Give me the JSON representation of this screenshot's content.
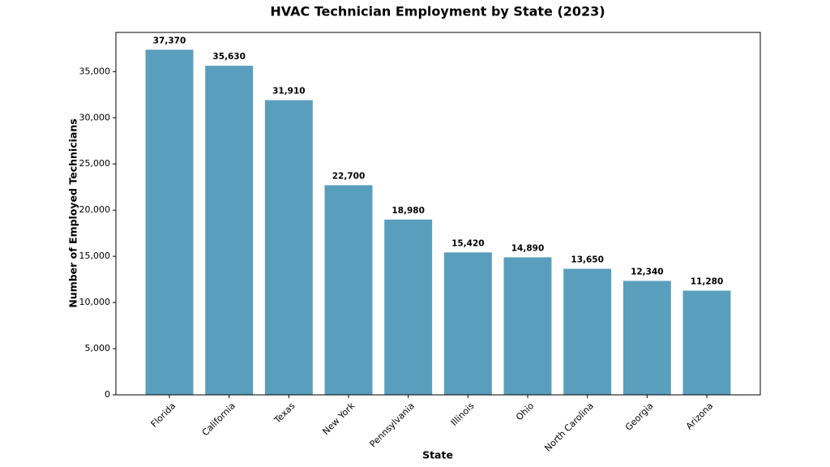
{
  "chart_data": {
    "type": "bar",
    "title": "HVAC Technician Employment by State (2023)",
    "x_label": "State",
    "y_label": "Number of Employed Technicians",
    "categories": [
      "Florida",
      "California",
      "Texas",
      "New York",
      "Pennsylvania",
      "Illinois",
      "Ohio",
      "North Carolina",
      "Georgia",
      "Arizona"
    ],
    "values": [
      37370,
      35630,
      31910,
      22700,
      18980,
      15420,
      14890,
      13650,
      12340,
      11280
    ],
    "value_labels": [
      "37,370",
      "35,630",
      "31,910",
      "22,700",
      "18,980",
      "15,420",
      "14,890",
      "13,650",
      "12,340",
      "11,280"
    ],
    "color": "#5a9ebd",
    "ylim": [
      0,
      39240
    ],
    "yticks": [
      0,
      {
        "value": 5000,
        "label": "5,000"
      },
      {
        "value": 10000,
        "label": "10,000"
      },
      {
        "value": 15000,
        "label": "15,000"
      },
      {
        "value": 20000,
        "label": "20,000"
      },
      {
        "value": 25000,
        "label": "25,000"
      },
      {
        "value": 30000,
        "label": "30,000"
      },
      {
        "value": 35000,
        "label": "35,000"
      }
    ],
    "grid": false
  }
}
